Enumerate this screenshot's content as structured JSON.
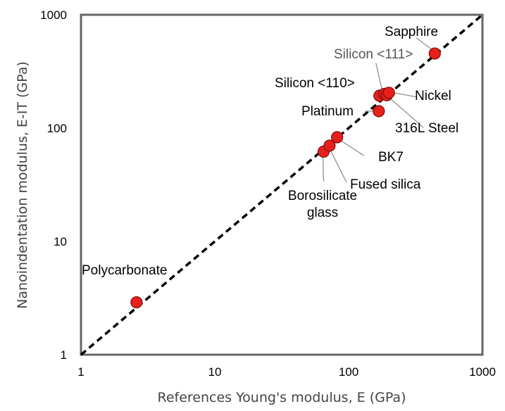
{
  "chart_data": {
    "type": "scatter",
    "xscale": "log",
    "yscale": "log",
    "xlim": [
      1,
      1000
    ],
    "ylim": [
      1,
      1000
    ],
    "grid": false,
    "xlabel": "References Young's modulus, E (GPa)",
    "ylabel": "Nanoindentation modulus, E-IT (GPa)",
    "xticks": [
      "1",
      "10",
      "100",
      "1000"
    ],
    "yticks": [
      "1",
      "10",
      "100",
      "1000"
    ],
    "reference_line": {
      "x": [
        1,
        1000
      ],
      "y": [
        1,
        1000
      ],
      "style": "dashed",
      "color": "#000000"
    },
    "marker_color": "#e8201c",
    "points": [
      {
        "name": "Polycarbonate",
        "x": 2.6,
        "y": 2.9
      },
      {
        "name": "Borosilicate glass",
        "label_lines": [
          "Borosilicate",
          "glass"
        ],
        "x": 65,
        "y": 62
      },
      {
        "name": "Fused silica",
        "x": 72,
        "y": 70
      },
      {
        "name": "BK7",
        "x": 82,
        "y": 83
      },
      {
        "name": "Platinum",
        "x": 168,
        "y": 141
      },
      {
        "name": "Silicon <110>",
        "x": 170,
        "y": 193
      },
      {
        "name": "Silicon <111>",
        "x": 185,
        "y": 200
      },
      {
        "name": "316L Steel",
        "x": 193,
        "y": 195
      },
      {
        "name": "Nickel",
        "x": 200,
        "y": 205
      },
      {
        "name": "Sapphire",
        "x": 440,
        "y": 455
      }
    ]
  }
}
